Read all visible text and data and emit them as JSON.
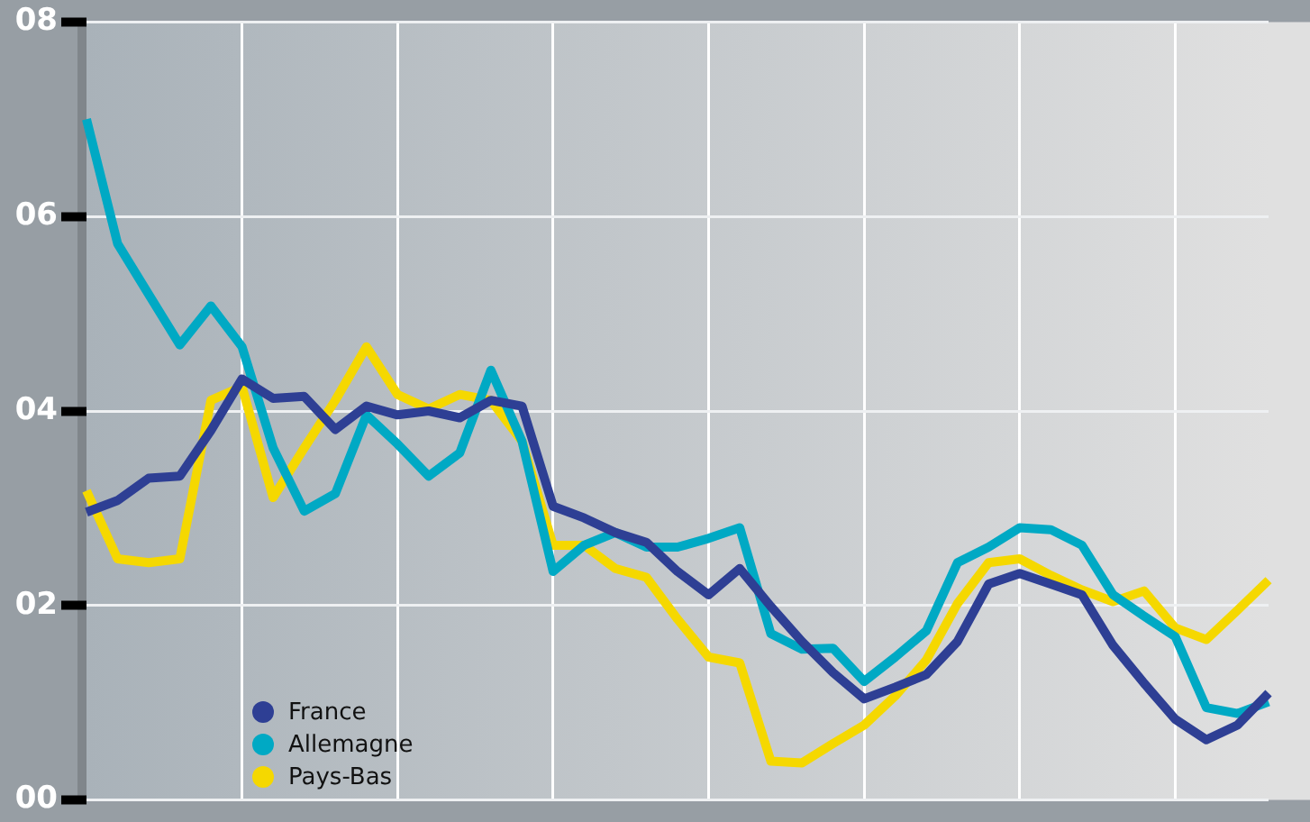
{
  "chart_data": {
    "type": "line",
    "categories": [
      null,
      null,
      null,
      null,
      null,
      null,
      null,
      null,
      null,
      null,
      null,
      null,
      null,
      null,
      null,
      null,
      null,
      null,
      null,
      null,
      null,
      null,
      null,
      null,
      null,
      null,
      null,
      null,
      null,
      null,
      null,
      null,
      null,
      null,
      null,
      null,
      null,
      null,
      null
    ],
    "series": [
      {
        "name": "France",
        "color": "#2e3f94",
        "values": [
          2.96,
          3.08,
          3.31,
          3.33,
          3.8,
          4.33,
          4.13,
          4.15,
          3.81,
          4.05,
          3.96,
          4.0,
          3.93,
          4.11,
          4.05,
          3.02,
          2.9,
          2.75,
          2.65,
          2.35,
          2.11,
          2.38,
          1.99,
          1.63,
          1.31,
          1.04,
          1.16,
          1.29,
          1.63,
          2.22,
          2.33,
          2.22,
          2.11,
          1.59,
          1.2,
          0.83,
          0.62,
          0.77,
          1.1
        ]
      },
      {
        "name": "Allemagne",
        "color": "#00a9c4",
        "values": [
          7.0,
          5.72,
          5.2,
          4.68,
          5.08,
          4.66,
          3.62,
          2.97,
          3.15,
          3.96,
          3.66,
          3.33,
          3.57,
          4.42,
          3.69,
          2.35,
          2.62,
          2.75,
          2.6,
          2.6,
          2.69,
          2.8,
          1.71,
          1.55,
          1.56,
          1.22,
          1.47,
          1.74,
          2.44,
          2.6,
          2.8,
          2.78,
          2.62,
          2.11,
          1.89,
          1.68,
          0.95,
          0.89,
          1.01
        ]
      },
      {
        "name": "Pays-Bas",
        "color": "#f5d800",
        "values": [
          3.18,
          2.48,
          2.44,
          2.48,
          4.11,
          4.25,
          3.11,
          3.62,
          4.11,
          4.66,
          4.17,
          4.02,
          4.17,
          4.11,
          3.69,
          2.62,
          2.62,
          2.38,
          2.29,
          1.86,
          1.47,
          1.41,
          0.4,
          0.38,
          0.58,
          0.77,
          1.07,
          1.44,
          2.02,
          2.44,
          2.48,
          2.31,
          2.16,
          2.04,
          2.15,
          1.77,
          1.65,
          1.95,
          2.26
        ]
      }
    ],
    "ylim": [
      0,
      8
    ],
    "yticks": [
      {
        "value": 0,
        "label": "00"
      },
      {
        "value": 2,
        "label": "02"
      },
      {
        "value": 4,
        "label": "04"
      },
      {
        "value": 6,
        "label": "06"
      },
      {
        "value": 8,
        "label": "08"
      }
    ],
    "grid": true,
    "legend": "bottom left",
    "marker": "none",
    "line_style": "solid",
    "tick_labels": "y"
  }
}
